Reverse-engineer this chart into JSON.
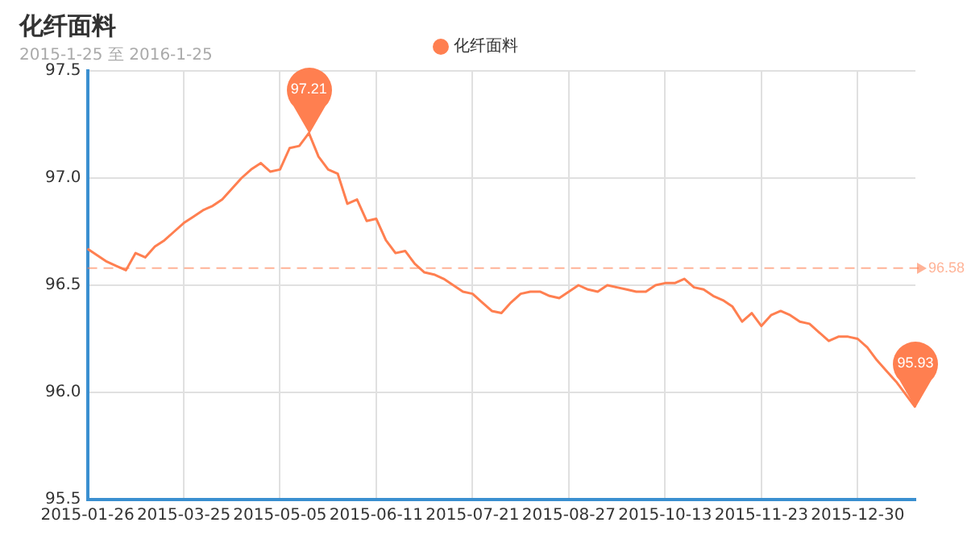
{
  "chart_data": {
    "type": "line",
    "title": "化纤面料",
    "subtitle": "2015-1-25 至 2016-1-25",
    "categories": [
      "2015-01-26",
      null,
      null,
      null,
      null,
      null,
      null,
      null,
      null,
      null,
      "2015-03-25",
      null,
      null,
      null,
      null,
      null,
      null,
      null,
      null,
      null,
      "2015-05-05",
      null,
      null,
      null,
      null,
      null,
      null,
      null,
      null,
      null,
      "2015-06-11",
      null,
      null,
      null,
      null,
      null,
      null,
      null,
      null,
      null,
      "2015-07-21",
      null,
      null,
      null,
      null,
      null,
      null,
      null,
      null,
      null,
      "2015-08-27",
      null,
      null,
      null,
      null,
      null,
      null,
      null,
      null,
      null,
      "2015-10-13",
      null,
      null,
      null,
      null,
      null,
      null,
      null,
      null,
      null,
      "2015-11-23",
      null,
      null,
      null,
      null,
      null,
      null,
      null,
      null,
      null,
      "2015-12-30",
      null,
      null,
      null,
      null,
      null,
      null
    ],
    "series": [
      {
        "name": "化纤面料",
        "color": "#ff7f50",
        "values": [
          96.67,
          96.64,
          96.61,
          96.59,
          96.57,
          96.65,
          96.63,
          96.68,
          96.71,
          96.75,
          96.79,
          96.82,
          96.85,
          96.87,
          96.9,
          96.95,
          97.0,
          97.04,
          97.07,
          97.03,
          97.04,
          97.14,
          97.15,
          97.21,
          97.1,
          97.04,
          97.02,
          96.88,
          96.9,
          96.8,
          96.81,
          96.71,
          96.65,
          96.66,
          96.6,
          96.56,
          96.55,
          96.53,
          96.5,
          96.47,
          96.46,
          96.42,
          96.38,
          96.37,
          96.42,
          96.46,
          96.47,
          96.47,
          96.45,
          96.44,
          96.47,
          96.5,
          96.48,
          96.47,
          96.5,
          96.49,
          96.48,
          96.47,
          96.47,
          96.5,
          96.51,
          96.51,
          96.53,
          96.49,
          96.48,
          96.45,
          96.43,
          96.4,
          96.33,
          96.37,
          96.31,
          96.36,
          96.38,
          96.36,
          96.33,
          96.32,
          96.28,
          96.24,
          96.26,
          96.26,
          96.25,
          96.21,
          96.15,
          96.1,
          96.05,
          95.99,
          95.93
        ]
      }
    ],
    "ylim": [
      95.5,
      97.5
    ],
    "yticks": [
      95.5,
      {
        "value": 96,
        "label": "96.0"
      },
      96.5,
      {
        "value": 97,
        "label": "97.0"
      },
      97.5
    ],
    "grid": true,
    "legend": "top",
    "marker": "none",
    "line_style": "solid",
    "ref_lines": [
      {
        "axis": "y",
        "value": 96.58,
        "label": "96.58",
        "color": "#ff7f50",
        "line_style": "dashed"
      }
    ],
    "annotations": [
      {
        "text": "97.21",
        "y": 97.21
      },
      {
        "text": "95.93",
        "y": 95.93
      }
    ]
  }
}
